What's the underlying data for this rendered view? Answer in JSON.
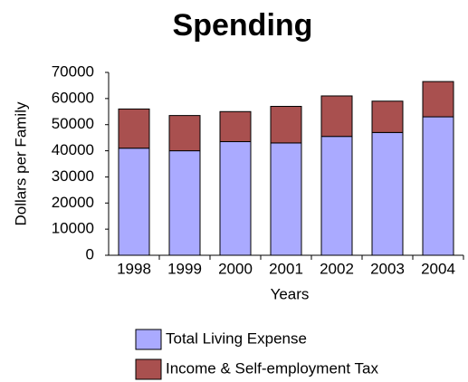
{
  "chart_data": {
    "type": "stacked-bar",
    "title": "Spending",
    "x_label": "Years",
    "y_label": "Dollars per Family",
    "categories": [
      "1998",
      "1999",
      "2000",
      "2001",
      "2002",
      "2003",
      "2004"
    ],
    "series": [
      {
        "name": "Total Living Expense",
        "color": "#aaaaff",
        "values": [
          41000,
          40000,
          43500,
          43000,
          45500,
          47000,
          53000
        ]
      },
      {
        "name": "Income & Self-employment Tax",
        "color": "#a9504f",
        "values": [
          15000,
          13500,
          11500,
          14000,
          15500,
          12000,
          13500
        ]
      }
    ],
    "ylim": [
      0,
      70000
    ],
    "yticks": [
      0,
      10000,
      20000,
      30000,
      40000,
      50000,
      60000,
      70000
    ]
  }
}
